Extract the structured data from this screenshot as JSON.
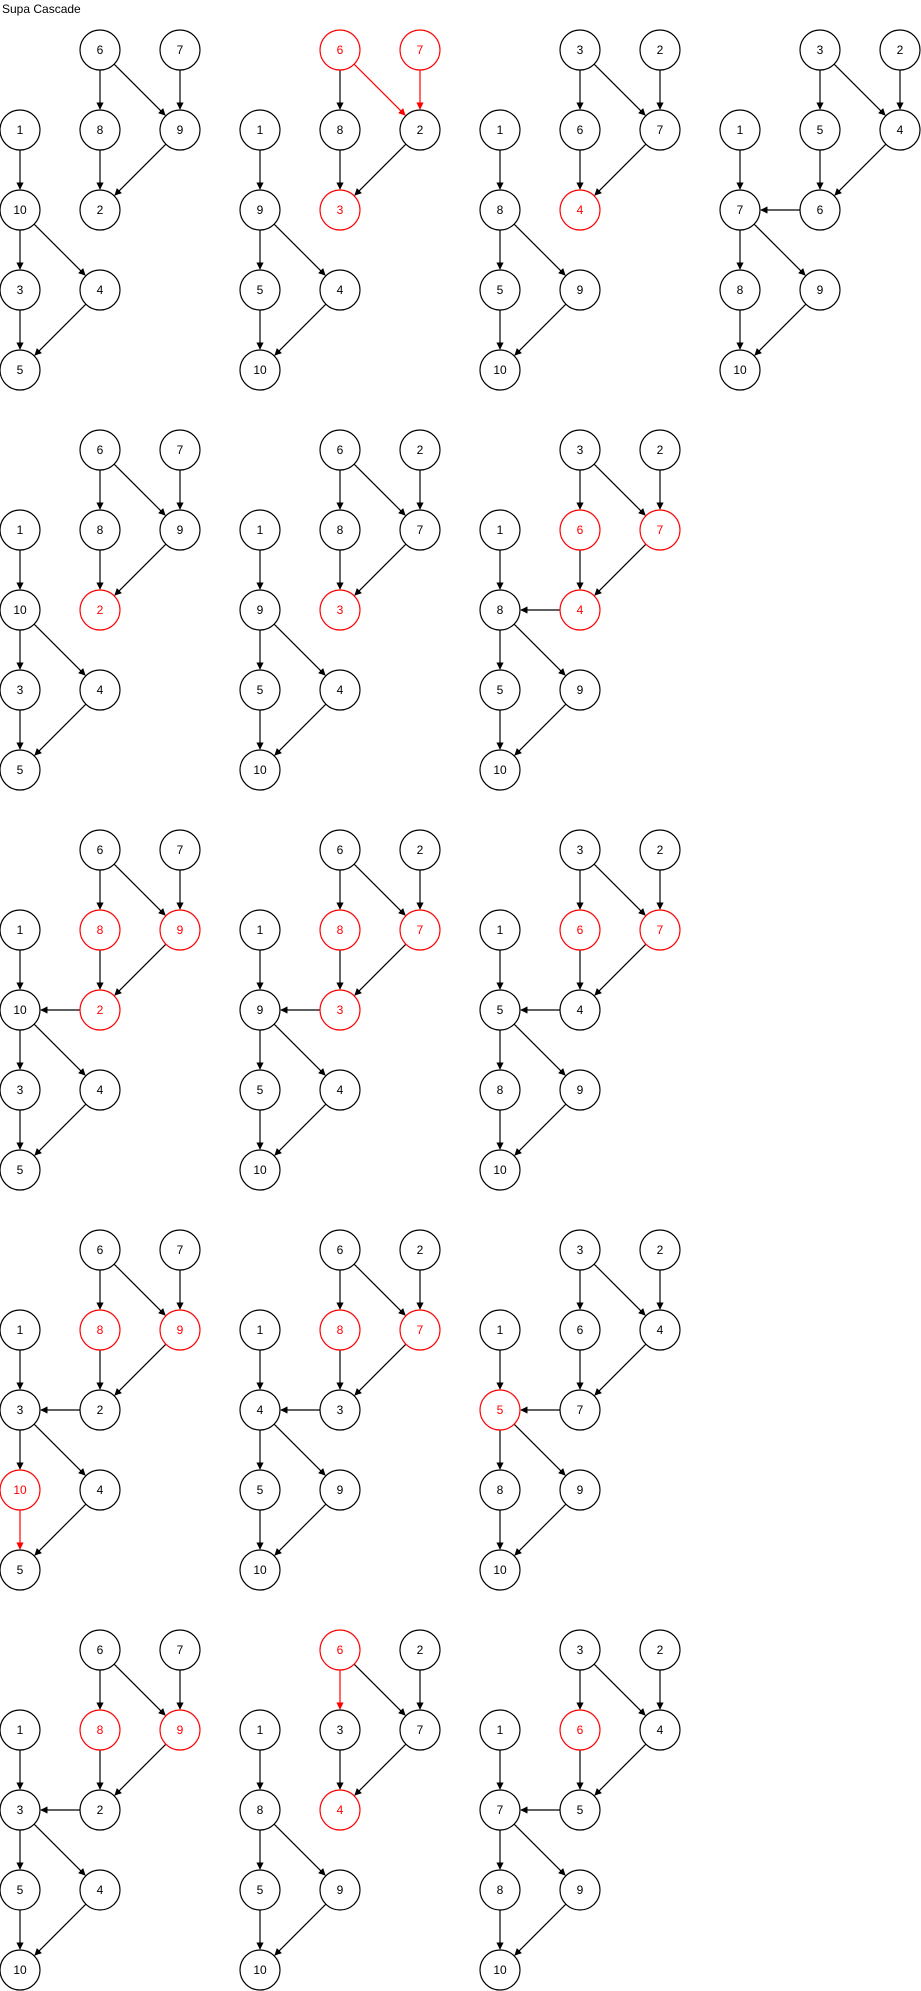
{
  "title": "Supa Cascade",
  "colors": {
    "normal": "#000000",
    "highlight": "#ff0000"
  },
  "diagrams": [
    {
      "labels": [
        "6",
        "7",
        "1",
        "8",
        "9",
        "2",
        "10",
        "3",
        "4",
        "5"
      ],
      "red_nodes": [],
      "red_edges": []
    },
    {
      "labels": [
        "6",
        "7",
        "1",
        "8",
        "2",
        "3",
        "9",
        "5",
        "4",
        "10"
      ],
      "red_nodes": [
        "a",
        "b",
        "f"
      ],
      "red_edges": [
        "a-e",
        "b-e",
        "f-g"
      ]
    },
    {
      "labels": [
        "3",
        "2",
        "1",
        "6",
        "7",
        "4",
        "8",
        "5",
        "9",
        "10"
      ],
      "red_nodes": [
        "f"
      ],
      "red_edges": [
        "f-g"
      ]
    },
    {
      "labels": [
        "3",
        "2",
        "1",
        "5",
        "4",
        "7",
        "6",
        "8",
        "9",
        "10"
      ],
      "red_nodes": [],
      "red_edges": []
    },
    {
      "labels": [
        "6",
        "7",
        "1",
        "8",
        "9",
        "2",
        "10",
        "3",
        "4",
        "5"
      ],
      "red_nodes": [
        "f"
      ],
      "red_edges": [
        "f-g"
      ]
    },
    {
      "labels": [
        "6",
        "2",
        "1",
        "8",
        "7",
        "3",
        "9",
        "5",
        "4",
        "10"
      ],
      "red_nodes": [
        "f"
      ],
      "red_edges": [
        "f-g"
      ]
    },
    {
      "labels": [
        "3",
        "2",
        "1",
        "6",
        "7",
        "8",
        "4",
        "5",
        "9",
        "10"
      ],
      "red_nodes": [
        "d",
        "e",
        "g"
      ],
      "red_edges": [
        "d-f",
        "e-f",
        "g-h"
      ]
    },
    {
      "labels": [
        "6",
        "7",
        "1",
        "8",
        "9",
        "10",
        "2",
        "3",
        "4",
        "5"
      ],
      "red_nodes": [
        "d",
        "e",
        "g"
      ],
      "red_edges": [
        "d-f",
        "e-f",
        "g-h"
      ]
    },
    {
      "labels": [
        "6",
        "2",
        "1",
        "8",
        "7",
        "9",
        "3",
        "5",
        "4",
        "10"
      ],
      "red_nodes": [
        "d",
        "e",
        "g"
      ],
      "red_edges": [
        "d-f",
        "e-f",
        "g-h",
        "g-i"
      ]
    },
    {
      "labels": [
        "3",
        "2",
        "1",
        "6",
        "7",
        "5",
        "4",
        "8",
        "9",
        "10"
      ],
      "red_nodes": [
        "d",
        "e"
      ],
      "red_edges": [
        "d-f",
        "e-f"
      ]
    },
    {
      "labels": [
        "6",
        "7",
        "1",
        "8",
        "9",
        "3",
        "2",
        "10",
        "4",
        "5"
      ],
      "red_nodes": [
        "d",
        "e",
        "h"
      ],
      "red_edges": [
        "d-f",
        "e-f",
        "h-j"
      ]
    },
    {
      "labels": [
        "6",
        "2",
        "1",
        "8",
        "7",
        "4",
        "3",
        "5",
        "9",
        "10"
      ],
      "red_nodes": [
        "d",
        "e"
      ],
      "red_edges": [
        "d-f",
        "e-f"
      ]
    },
    {
      "labels": [
        "3",
        "2",
        "1",
        "6",
        "4",
        "5",
        "7",
        "8",
        "9",
        "10"
      ],
      "red_nodes": [
        "f"
      ],
      "red_edges": [
        "f-g"
      ]
    },
    {
      "labels": [
        "6",
        "7",
        "1",
        "8",
        "9",
        "3",
        "2",
        "5",
        "4",
        "10"
      ],
      "red_nodes": [
        "d",
        "e"
      ],
      "red_edges": [
        "d-f",
        "e-f"
      ]
    },
    {
      "labels": [
        "6",
        "2",
        "1",
        "3",
        "7",
        "4",
        "8",
        "5",
        "9",
        "10"
      ],
      "red_nodes": [
        "a",
        "f"
      ],
      "red_edges": [
        "a-d",
        "f-g"
      ]
    },
    {
      "labels": [
        "3",
        "2",
        "1",
        "6",
        "4",
        "7",
        "5",
        "8",
        "9",
        "10"
      ],
      "red_nodes": [
        "d"
      ],
      "red_edges": [
        "d-f"
      ]
    }
  ]
}
